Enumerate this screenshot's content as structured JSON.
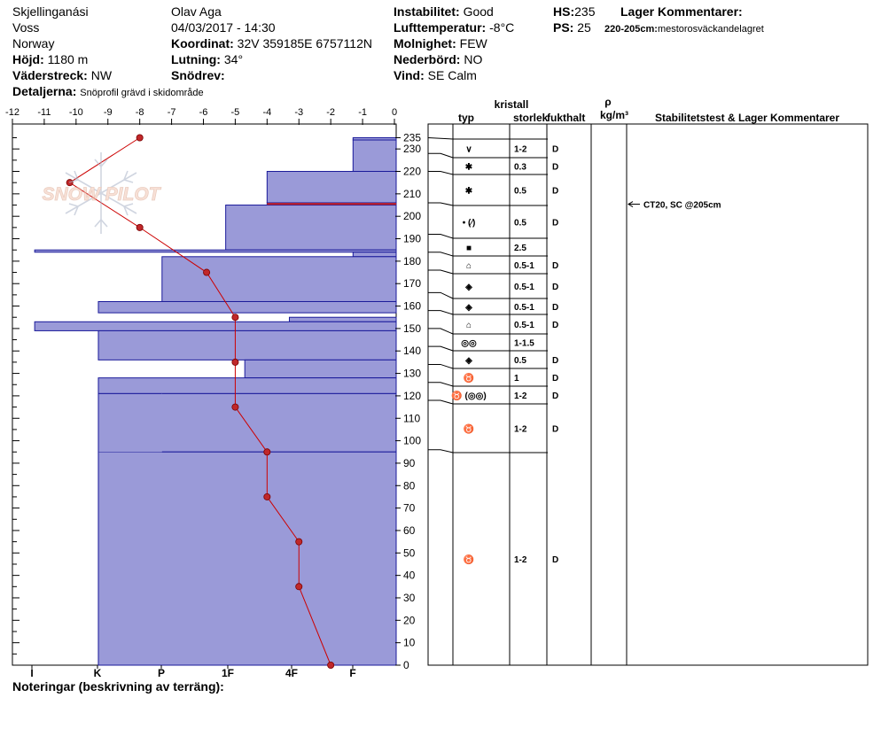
{
  "header": {
    "location": "Skjellinganási",
    "region": "Voss",
    "country": "Norway",
    "elevation_label": "Höjd:",
    "elevation": "1180 m",
    "aspect_label": "Väderstreck:",
    "aspect": "NW",
    "details_label": "Detaljerna:",
    "details": "Snöprofil grävd i skidområde",
    "observer": "Olav Aga",
    "datetime": "04/03/2017 - 14:30",
    "coord_label": "Koordinat:",
    "coord": "32V 359185E 6757112N",
    "slope_label": "Lutning:",
    "slope": "34°",
    "drift_label": "Snödrev:",
    "drift": "",
    "stability_label": "Instabilitet:",
    "stability": "Good",
    "airtemp_label": "Lufttemperatur:",
    "airtemp": "-8°C",
    "sky_label": "Molnighet:",
    "sky": "FEW",
    "precip_label": "Nederbörd:",
    "precip": "NO",
    "wind_label": "Vind:",
    "wind": "SE Calm",
    "hs_label": "HS:",
    "hs": "235",
    "ps_label": "PS:",
    "ps": "25",
    "layer_comments_title": "Lager Kommentarer:",
    "layer_comment_range": "220-205cm:",
    "layer_comment_text": "mestorosväckandelagret",
    "footer": "Noteringar (beskrivning av terräng):",
    "watermark": "SNOW PILOT"
  },
  "table_headers": {
    "crystal": "kristall",
    "type": "typ",
    "size": "storlek",
    "moisture": "fukthalt",
    "rho": "ρ",
    "density_unit": "kg/m³",
    "stability_comments": "Stabilitetstest & Lager Kommentarer"
  },
  "chart_data": {
    "type": "snow_profile",
    "temperature_axis": {
      "label": "",
      "ticks": [
        -12,
        -11,
        -10,
        -9,
        -8,
        -7,
        -6,
        -5,
        -4,
        -3,
        -2,
        -1,
        0
      ],
      "range": [
        -12,
        0
      ],
      "position": "top"
    },
    "height_axis": {
      "label": "",
      "range": [
        0,
        240
      ],
      "ticks": [
        0,
        10,
        20,
        30,
        40,
        50,
        60,
        70,
        80,
        90,
        100,
        110,
        120,
        130,
        140,
        150,
        160,
        170,
        180,
        190,
        200,
        210,
        220,
        230,
        235
      ]
    },
    "hardness_axis": {
      "labels": [
        "I",
        "K",
        "P",
        "1F",
        "4F",
        "F"
      ],
      "position": "bottom"
    },
    "temperature_profile": [
      {
        "height": 235,
        "temp": -8
      },
      {
        "height": 215,
        "temp": -10.2
      },
      {
        "height": 195,
        "temp": -8
      },
      {
        "height": 175,
        "temp": -5.9
      },
      {
        "height": 155,
        "temp": -5
      },
      {
        "height": 135,
        "temp": -5
      },
      {
        "height": 115,
        "temp": -5
      },
      {
        "height": 95,
        "temp": -4
      },
      {
        "height": 75,
        "temp": -4
      },
      {
        "height": 55,
        "temp": -3
      },
      {
        "height": 35,
        "temp": -3
      },
      {
        "height": 0,
        "temp": -2
      }
    ],
    "hardness_layers": [
      {
        "top": 235,
        "bottom": 234,
        "hardness_value": -1.3
      },
      {
        "top": 234,
        "bottom": 220,
        "hardness_value": -1.3
      },
      {
        "top": 220,
        "bottom": 206,
        "hardness_value": -4
      },
      {
        "top": 206,
        "bottom": 205,
        "hardness_value": -4
      },
      {
        "top": 205,
        "bottom": 185,
        "hardness_value": -5.3
      },
      {
        "top": 185,
        "bottom": 184,
        "hardness_value": -11.3
      },
      {
        "top": 184,
        "bottom": 182,
        "hardness_value": -1.3
      },
      {
        "top": 182,
        "bottom": 162,
        "hardness_value": -7.3
      },
      {
        "top": 162,
        "bottom": 157,
        "hardness_value": -9.3
      },
      {
        "top": 155,
        "bottom": 153,
        "hardness_value": -3.3
      },
      {
        "top": 153,
        "bottom": 149,
        "hardness_value": -11.3
      },
      {
        "top": 149,
        "bottom": 136,
        "hardness_value": -9.3
      },
      {
        "top": 136,
        "bottom": 128,
        "hardness_value": -4.7
      },
      {
        "top": 128,
        "bottom": 121,
        "hardness_value": -9.3
      },
      {
        "top": 121,
        "bottom": 95,
        "hardness_value": -9.3
      },
      {
        "top": 95,
        "bottom": 0,
        "hardness_value": -9.3
      }
    ],
    "layers": [
      {
        "top": 235,
        "bottom": 228,
        "type": "∨",
        "size": "1-2",
        "moisture": "D"
      },
      {
        "top": 228,
        "bottom": 220,
        "type": "✱",
        "size": "0.3",
        "moisture": "D"
      },
      {
        "top": 220,
        "bottom": 206,
        "type": "✱",
        "size": "0.5",
        "moisture": "D"
      },
      {
        "top": 206,
        "bottom": 192,
        "type": "• (⁄)",
        "size": "0.5",
        "moisture": "D"
      },
      {
        "top": 192,
        "bottom": 184,
        "type": "■",
        "size": "2.5",
        "moisture": ""
      },
      {
        "top": 184,
        "bottom": 176,
        "type": "⌂",
        "size": "0.5-1",
        "moisture": "D"
      },
      {
        "top": 176,
        "bottom": 166,
        "type": "◈",
        "size": "0.5-1",
        "moisture": "D"
      },
      {
        "top": 166,
        "bottom": 158,
        "type": "◈",
        "size": "0.5-1",
        "moisture": "D"
      },
      {
        "top": 158,
        "bottom": 150,
        "type": "⌂",
        "size": "0.5-1",
        "moisture": "D"
      },
      {
        "top": 150,
        "bottom": 142,
        "type": "◎◎",
        "size": "1-1.5",
        "moisture": ""
      },
      {
        "top": 142,
        "bottom": 134,
        "type": "◈",
        "size": "0.5",
        "moisture": "D"
      },
      {
        "top": 134,
        "bottom": 126,
        "type": "♉",
        "size": "1",
        "moisture": "D"
      },
      {
        "top": 126,
        "bottom": 118,
        "type": "♉ (◎◎)",
        "size": "1-2",
        "moisture": "D"
      },
      {
        "top": 118,
        "bottom": 96,
        "type": "♉",
        "size": "1-2",
        "moisture": "D"
      },
      {
        "top": 96,
        "bottom": 0,
        "type": "♉",
        "size": "1-2",
        "moisture": "D"
      }
    ],
    "stability_tests": [
      {
        "height": 205,
        "text": "CT20, SC @205cm"
      }
    ],
    "colors": {
      "hardness_fill": "#9a9ad8",
      "hardness_edge": "#1a1a9a",
      "temp_line": "#cc0000",
      "temp_marker": "#c0282a"
    }
  }
}
